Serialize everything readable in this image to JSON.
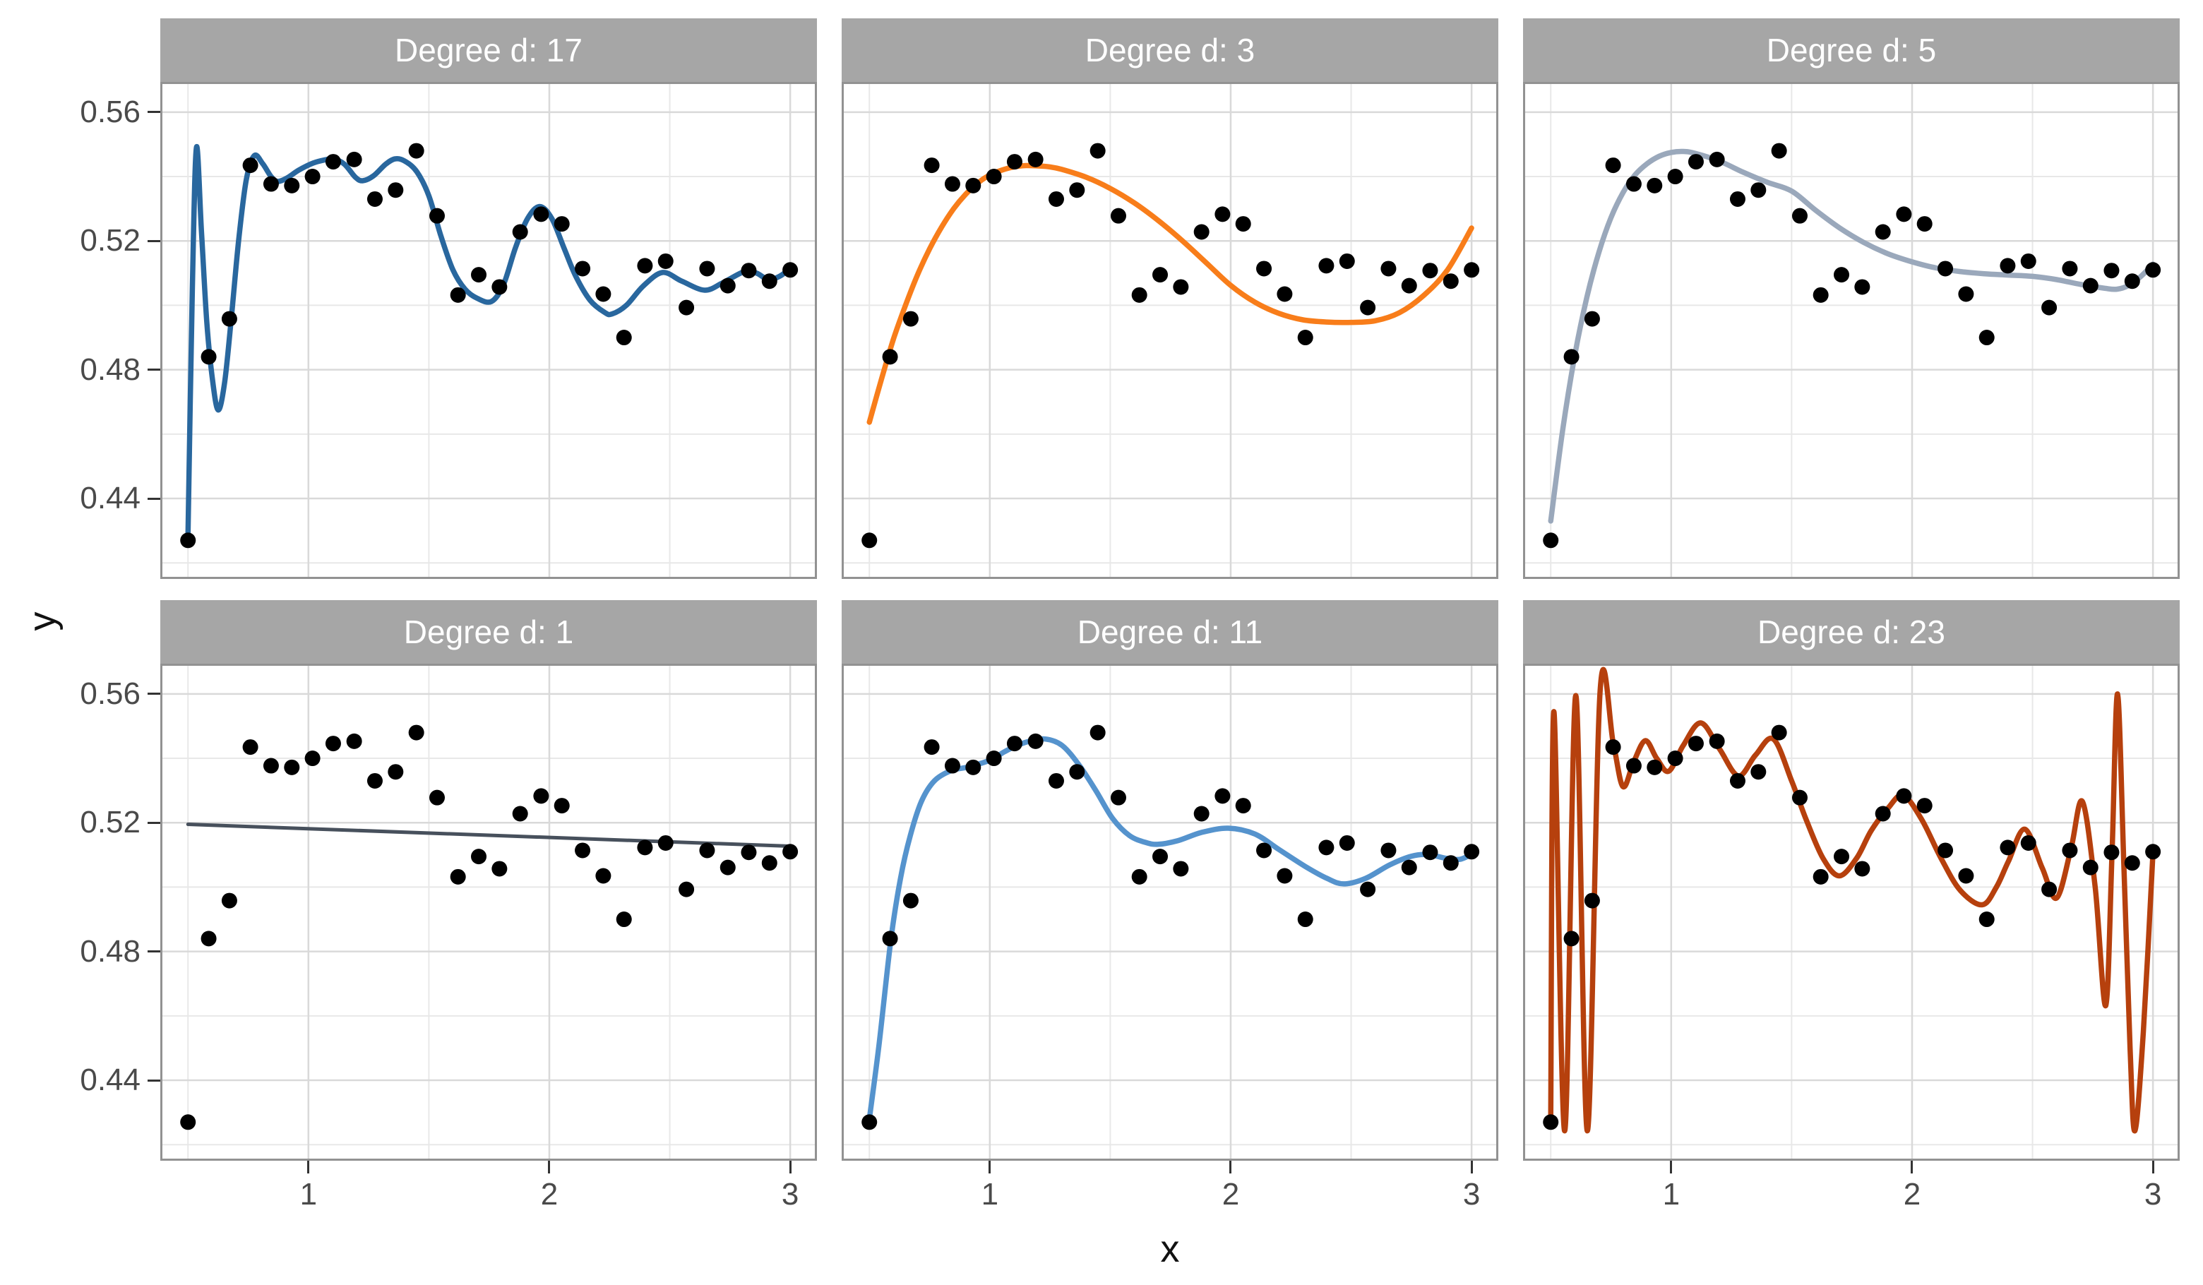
{
  "figure": {
    "kind": "faceted scatter with polynomial regression fits (ggplot style)"
  },
  "axes": {
    "x_title": "x",
    "y_title": "y",
    "x_ticks": [
      {
        "value": 1,
        "label": "1"
      },
      {
        "value": 2,
        "label": "2"
      },
      {
        "value": 3,
        "label": "3"
      }
    ],
    "x_minor": [
      0.5,
      1.5,
      2.5
    ],
    "y_ticks": [
      {
        "value": 0.56,
        "label": "0.56"
      },
      {
        "value": 0.52,
        "label": "0.52"
      },
      {
        "value": 0.48,
        "label": "0.48"
      },
      {
        "value": 0.44,
        "label": "0.44"
      }
    ],
    "y_minor": [
      0.54,
      0.5,
      0.46,
      0.42
    ],
    "x_range": [
      0.385,
      3.111
    ],
    "y_range": [
      0.415,
      0.5694
    ],
    "grid": "major and minor gridlines on, white panel background"
  },
  "style": {
    "strip_bg": "#a6a6a6",
    "strip_text_color": "#ffffff",
    "panel_border": "#929292",
    "grid_major": "#d9d9d9",
    "grid_minor": "#e8e8e8",
    "tick_color": "#333333",
    "axis_text_color": "#4a4a4a",
    "axis_title_color": "#111111",
    "point_color": "#000000",
    "point_radius": 11
  },
  "chart_data": {
    "type": "scatter",
    "note": "same 30 scatter points in every facet; each facet overlays a polynomial fit of the given degree",
    "xlabel": "x",
    "ylabel": "y",
    "legend_position": "none",
    "points": [
      [
        0.5,
        0.427
      ],
      [
        0.586,
        0.484
      ],
      [
        0.672,
        0.4958
      ],
      [
        0.759,
        0.5435
      ],
      [
        0.845,
        0.5377
      ],
      [
        0.931,
        0.5372
      ],
      [
        1.017,
        0.54
      ],
      [
        1.103,
        0.5446
      ],
      [
        1.19,
        0.5453
      ],
      [
        1.276,
        0.533
      ],
      [
        1.362,
        0.5358
      ],
      [
        1.448,
        0.548
      ],
      [
        1.534,
        0.5278
      ],
      [
        1.621,
        0.5032
      ],
      [
        1.707,
        0.5095
      ],
      [
        1.793,
        0.5057
      ],
      [
        1.879,
        0.5228
      ],
      [
        1.966,
        0.5283
      ],
      [
        2.052,
        0.5253
      ],
      [
        2.138,
        0.5114
      ],
      [
        2.224,
        0.5035
      ],
      [
        2.31,
        0.49
      ],
      [
        2.397,
        0.5123
      ],
      [
        2.483,
        0.5137
      ],
      [
        2.569,
        0.4993
      ],
      [
        2.655,
        0.5114
      ],
      [
        2.741,
        0.5061
      ],
      [
        2.828,
        0.5108
      ],
      [
        2.914,
        0.5075
      ],
      [
        3.0,
        0.511
      ]
    ],
    "facets": [
      {
        "label": "Degree d: 17",
        "degree": 17,
        "line_color": "#29679e",
        "line_width": 7.5,
        "curve": [
          [
            0.5,
            0.4285
          ],
          [
            0.518,
            0.505
          ],
          [
            0.535,
            0.549
          ],
          [
            0.556,
            0.523
          ],
          [
            0.578,
            0.495
          ],
          [
            0.6,
            0.478
          ],
          [
            0.625,
            0.4675
          ],
          [
            0.652,
            0.476
          ],
          [
            0.68,
            0.496
          ],
          [
            0.71,
            0.52
          ],
          [
            0.742,
            0.539
          ],
          [
            0.775,
            0.5465
          ],
          [
            0.81,
            0.544
          ],
          [
            0.845,
            0.54
          ],
          [
            0.872,
            0.5385
          ],
          [
            0.91,
            0.5395
          ],
          [
            0.96,
            0.542
          ],
          [
            1.02,
            0.5442
          ],
          [
            1.07,
            0.5452
          ],
          [
            1.105,
            0.5455
          ],
          [
            1.15,
            0.5438
          ],
          [
            1.195,
            0.5398
          ],
          [
            1.225,
            0.5387
          ],
          [
            1.27,
            0.5402
          ],
          [
            1.32,
            0.5438
          ],
          [
            1.36,
            0.5455
          ],
          [
            1.4,
            0.5448
          ],
          [
            1.45,
            0.5415
          ],
          [
            1.5,
            0.534
          ],
          [
            1.55,
            0.5215
          ],
          [
            1.6,
            0.511
          ],
          [
            1.65,
            0.505
          ],
          [
            1.7,
            0.5022
          ],
          [
            1.76,
            0.5012
          ],
          [
            1.81,
            0.5065
          ],
          [
            1.86,
            0.518
          ],
          [
            1.91,
            0.527
          ],
          [
            1.96,
            0.5307
          ],
          [
            2.01,
            0.527
          ],
          [
            2.06,
            0.518
          ],
          [
            2.11,
            0.509
          ],
          [
            2.17,
            0.5015
          ],
          [
            2.23,
            0.4978
          ],
          [
            2.26,
            0.4973
          ],
          [
            2.32,
            0.5
          ],
          [
            2.39,
            0.506
          ],
          [
            2.47,
            0.5102
          ],
          [
            2.55,
            0.5075
          ],
          [
            2.645,
            0.5047
          ],
          [
            2.72,
            0.507
          ],
          [
            2.81,
            0.5105
          ],
          [
            2.86,
            0.51
          ],
          [
            2.91,
            0.508
          ],
          [
            2.96,
            0.5092
          ],
          [
            3.0,
            0.5116
          ]
        ]
      },
      {
        "label": "Degree d: 3",
        "degree": 3,
        "line_color": "#f87d1a",
        "line_width": 7.5,
        "curve": [
          [
            0.5,
            0.4637
          ],
          [
            0.55,
            0.477
          ],
          [
            0.6,
            0.4895
          ],
          [
            0.65,
            0.5
          ],
          [
            0.7,
            0.5095
          ],
          [
            0.75,
            0.5175
          ],
          [
            0.8,
            0.5243
          ],
          [
            0.85,
            0.53
          ],
          [
            0.9,
            0.5345
          ],
          [
            0.95,
            0.538
          ],
          [
            1.0,
            0.5405
          ],
          [
            1.05,
            0.542
          ],
          [
            1.1,
            0.543
          ],
          [
            1.15,
            0.5434
          ],
          [
            1.2,
            0.5433
          ],
          [
            1.25,
            0.543
          ],
          [
            1.3,
            0.5422
          ],
          [
            1.4,
            0.5398
          ],
          [
            1.5,
            0.5363
          ],
          [
            1.6,
            0.5318
          ],
          [
            1.7,
            0.5263
          ],
          [
            1.8,
            0.52
          ],
          [
            1.9,
            0.5131
          ],
          [
            2.0,
            0.5062
          ],
          [
            2.1,
            0.501
          ],
          [
            2.2,
            0.4975
          ],
          [
            2.3,
            0.4955
          ],
          [
            2.4,
            0.4948
          ],
          [
            2.5,
            0.4947
          ],
          [
            2.6,
            0.4952
          ],
          [
            2.7,
            0.4977
          ],
          [
            2.8,
            0.503
          ],
          [
            2.9,
            0.511
          ],
          [
            3.0,
            0.524
          ]
        ]
      },
      {
        "label": "Degree d: 5",
        "degree": 5,
        "line_color": "#9aa8bb",
        "line_width": 7.5,
        "curve": [
          [
            0.5,
            0.433
          ],
          [
            0.55,
            0.4615
          ],
          [
            0.6,
            0.4845
          ],
          [
            0.65,
            0.5025
          ],
          [
            0.7,
            0.5165
          ],
          [
            0.75,
            0.5272
          ],
          [
            0.8,
            0.535
          ],
          [
            0.85,
            0.5405
          ],
          [
            0.9,
            0.544
          ],
          [
            0.95,
            0.5463
          ],
          [
            1.0,
            0.5475
          ],
          [
            1.05,
            0.5478
          ],
          [
            1.1,
            0.5472
          ],
          [
            1.2,
            0.5448
          ],
          [
            1.3,
            0.5413
          ],
          [
            1.4,
            0.5382
          ],
          [
            1.5,
            0.5355
          ],
          [
            1.6,
            0.5295
          ],
          [
            1.7,
            0.524
          ],
          [
            1.8,
            0.5195
          ],
          [
            1.9,
            0.516
          ],
          [
            2.0,
            0.5135
          ],
          [
            2.1,
            0.5116
          ],
          [
            2.2,
            0.5105
          ],
          [
            2.3,
            0.5098
          ],
          [
            2.4,
            0.5094
          ],
          [
            2.5,
            0.509
          ],
          [
            2.6,
            0.508
          ],
          [
            2.7,
            0.5065
          ],
          [
            2.8,
            0.5053
          ],
          [
            2.85,
            0.505
          ],
          [
            2.9,
            0.5062
          ],
          [
            2.95,
            0.509
          ],
          [
            3.0,
            0.5128
          ]
        ]
      },
      {
        "label": "Degree d: 1",
        "degree": 1,
        "line_color": "#47505c",
        "line_width": 5,
        "curve": [
          [
            0.5,
            0.5195
          ],
          [
            3.0,
            0.5127
          ]
        ]
      },
      {
        "label": "Degree d: 11",
        "degree": 11,
        "line_color": "#5593cd",
        "line_width": 7.5,
        "curve": [
          [
            0.5,
            0.428
          ],
          [
            0.54,
            0.451
          ],
          [
            0.59,
            0.484
          ],
          [
            0.63,
            0.503
          ],
          [
            0.67,
            0.516
          ],
          [
            0.716,
            0.5266
          ],
          [
            0.77,
            0.533
          ],
          [
            0.84,
            0.5362
          ],
          [
            0.91,
            0.5373
          ],
          [
            1.0,
            0.5394
          ],
          [
            1.06,
            0.542
          ],
          [
            1.105,
            0.5437
          ],
          [
            1.16,
            0.5452
          ],
          [
            1.23,
            0.546
          ],
          [
            1.3,
            0.544
          ],
          [
            1.37,
            0.538
          ],
          [
            1.44,
            0.53
          ],
          [
            1.51,
            0.5213
          ],
          [
            1.58,
            0.516
          ],
          [
            1.65,
            0.5138
          ],
          [
            1.7,
            0.5133
          ],
          [
            1.78,
            0.5144
          ],
          [
            1.88,
            0.517
          ],
          [
            1.99,
            0.5183
          ],
          [
            2.1,
            0.5165
          ],
          [
            2.2,
            0.5117
          ],
          [
            2.31,
            0.5064
          ],
          [
            2.4,
            0.5027
          ],
          [
            2.47,
            0.501
          ],
          [
            2.56,
            0.5027
          ],
          [
            2.66,
            0.5069
          ],
          [
            2.75,
            0.5096
          ],
          [
            2.82,
            0.5101
          ],
          [
            2.89,
            0.509
          ],
          [
            2.95,
            0.5086
          ],
          [
            3.0,
            0.5102
          ]
        ]
      },
      {
        "label": "Degree d: 23",
        "degree": 23,
        "line_color": "#b6400d",
        "line_width": 7.5,
        "curve": [
          [
            0.5,
            0.4285
          ],
          [
            0.513,
            0.5545
          ],
          [
            0.558,
            0.4243
          ],
          [
            0.604,
            0.5595
          ],
          [
            0.652,
            0.4243
          ],
          [
            0.705,
            0.561
          ],
          [
            0.76,
            0.5445
          ],
          [
            0.8,
            0.5312
          ],
          [
            0.845,
            0.539
          ],
          [
            0.893,
            0.5455
          ],
          [
            0.94,
            0.54
          ],
          [
            0.99,
            0.536
          ],
          [
            1.05,
            0.544
          ],
          [
            1.123,
            0.551
          ],
          [
            1.2,
            0.543
          ],
          [
            1.279,
            0.5345
          ],
          [
            1.35,
            0.541
          ],
          [
            1.424,
            0.546
          ],
          [
            1.5,
            0.533
          ],
          [
            1.56,
            0.521
          ],
          [
            1.63,
            0.509
          ],
          [
            1.698,
            0.5035
          ],
          [
            1.77,
            0.509
          ],
          [
            1.83,
            0.5175
          ],
          [
            1.9,
            0.5245
          ],
          [
            1.963,
            0.5285
          ],
          [
            2.04,
            0.521
          ],
          [
            2.12,
            0.509
          ],
          [
            2.2,
            0.499
          ],
          [
            2.291,
            0.4945
          ],
          [
            2.35,
            0.5
          ],
          [
            2.4,
            0.508
          ],
          [
            2.468,
            0.518
          ],
          [
            2.54,
            0.506
          ],
          [
            2.6,
            0.4966
          ],
          [
            2.66,
            0.512
          ],
          [
            2.707,
            0.5266
          ],
          [
            2.76,
            0.5
          ],
          [
            2.804,
            0.4632
          ],
          [
            2.83,
            0.51
          ],
          [
            2.853,
            0.56
          ],
          [
            2.88,
            0.505
          ],
          [
            2.905,
            0.45
          ],
          [
            2.925,
            0.4243
          ],
          [
            2.96,
            0.455
          ],
          [
            3.0,
            0.5105
          ]
        ]
      }
    ]
  }
}
